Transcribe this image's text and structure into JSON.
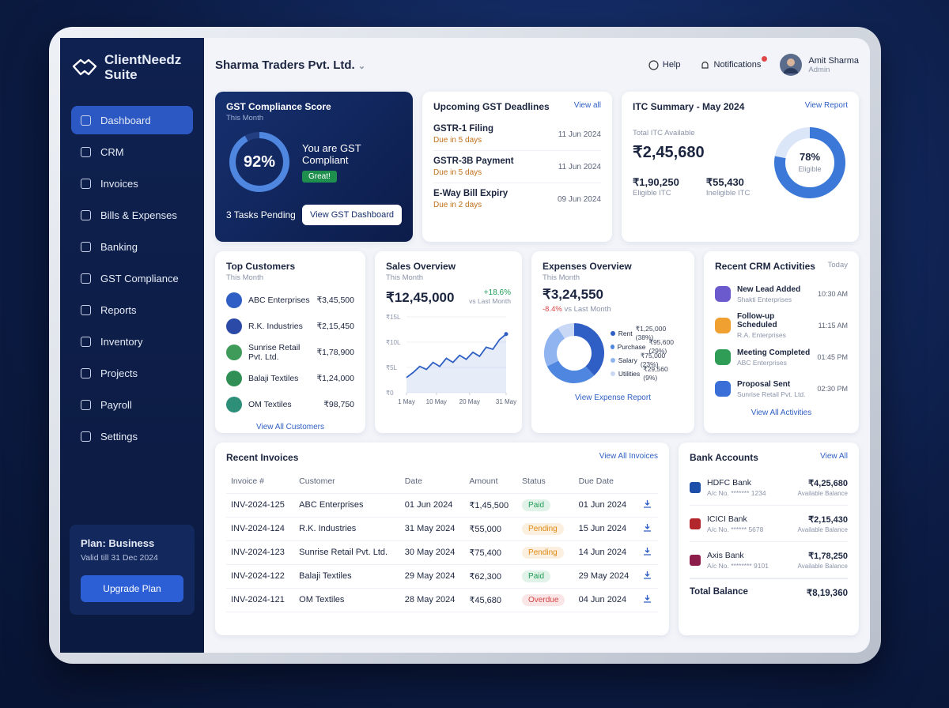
{
  "sidebar": {
    "brand": [
      "ClientNeedz",
      "Suite"
    ],
    "nav": [
      "Dashboard",
      "CRM",
      "Invoices",
      "Bills & Expenses",
      "Banking",
      "GST Compliance",
      "Reports",
      "Inventory",
      "Projects",
      "Payroll",
      "Settings"
    ],
    "plan": {
      "title": "Plan: Business",
      "valid": "Valid till 31 Dec 2024",
      "button": "Upgrade Plan"
    }
  },
  "topbar": {
    "company": "Sharma Traders Pvt. Ltd.",
    "help": "Help",
    "notifications": "Notifications",
    "user": "Amit Sharma",
    "role": "Admin"
  },
  "gst_score": {
    "title": "GST Compliance Score",
    "subtitle": "This Month",
    "value": 92,
    "value_label": "92%",
    "status": "You are GST Compliant",
    "badge": "Great!",
    "pending": "3 Tasks Pending",
    "button": "View GST Dashboard"
  },
  "deadlines": {
    "title": "Upcoming GST Deadlines",
    "link": "View all",
    "items": [
      {
        "name": "GSTR-1 Filing",
        "due": "Due in 5 days",
        "date": "11 Jun 2024"
      },
      {
        "name": "GSTR-3B Payment",
        "due": "Due in 5 days",
        "date": "11 Jun 2024"
      },
      {
        "name": "E-Way Bill Expiry",
        "due": "Due in 2 days",
        "date": "09 Jun 2024"
      }
    ]
  },
  "itc": {
    "title": "ITC Summary - May 2024",
    "link": "View Report",
    "total_label": "Total ITC Available",
    "total": "₹2,45,680",
    "eligible": "₹1,90,250",
    "eligible_label": "Eligible ITC",
    "ineligible": "₹55,430",
    "ineligible_label": "Ineligible ITC",
    "eligible_pct": 78,
    "eligible_pct_label": "78%",
    "donut_label": "Eligible",
    "color": "#3b78d8"
  },
  "customers": {
    "title": "Top Customers",
    "subtitle": "This Month",
    "link": "View All Customers",
    "items": [
      {
        "name": "ABC Enterprises",
        "amount": "₹3,45,500",
        "color": "#2f5fc4"
      },
      {
        "name": "R.K. Industries",
        "amount": "₹2,15,450",
        "color": "#2b4aa8"
      },
      {
        "name": "Sunrise Retail Pvt. Ltd.",
        "amount": "₹1,78,900",
        "color": "#3e9b5a"
      },
      {
        "name": "Balaji Textiles",
        "amount": "₹1,24,000",
        "color": "#2f8f55"
      },
      {
        "name": "OM Textiles",
        "amount": "₹98,750",
        "color": "#2e8f78"
      }
    ]
  },
  "sales": {
    "title": "Sales Overview",
    "subtitle": "This Month",
    "total": "₹12,45,000",
    "change": "+18.6%",
    "change_note": "vs Last Month",
    "chart_data": {
      "type": "line",
      "color": "#2f5fc4",
      "x": [
        1,
        3,
        5,
        7,
        9,
        11,
        13,
        15,
        17,
        19,
        21,
        23,
        25,
        27,
        29,
        31
      ],
      "values": [
        3,
        4,
        5.2,
        4.6,
        6,
        5.2,
        6.8,
        6,
        7.4,
        6.6,
        8,
        7.2,
        9,
        8.6,
        10.5,
        11.6
      ],
      "xlim": [
        1,
        31
      ],
      "xticks": [
        {
          "value": 1,
          "label": "1 May"
        },
        {
          "value": 10,
          "label": "10 May"
        },
        {
          "value": 20,
          "label": "20 May"
        },
        {
          "value": 31,
          "label": "31 May"
        }
      ],
      "ylim": [
        0,
        15
      ],
      "yticks": [
        {
          "value": 0,
          "label": "₹0"
        },
        {
          "value": 5,
          "label": "₹5L"
        },
        {
          "value": 10,
          "label": "₹10L"
        },
        {
          "value": 15,
          "label": "₹15L"
        }
      ],
      "grid": true
    }
  },
  "expenses": {
    "title": "Expenses Overview",
    "subtitle": "This Month",
    "total": "₹3,24,550",
    "change": "-8.4%",
    "change_note": "vs Last Month",
    "link": "View Expense Report",
    "chart_data": {
      "type": "donut",
      "series": [
        {
          "name": "Rent",
          "value": 125000,
          "value_label": "₹1,25,000 (38%)",
          "color": "#2f5fc4"
        },
        {
          "name": "Purchase",
          "value": 95600,
          "value_label": "₹95,600 (29%)",
          "color": "#4f86e0"
        },
        {
          "name": "Salary",
          "value": 75000,
          "value_label": "₹75,000 (23%)",
          "color": "#8fb4ef"
        },
        {
          "name": "Utilities",
          "value": 29560,
          "value_label": "₹29,560 (9%)",
          "color": "#c9d9f5"
        }
      ]
    }
  },
  "crm": {
    "title": "Recent CRM Activities",
    "subtitle": "Today",
    "link": "View All Activities",
    "items": [
      {
        "title": "New Lead Added",
        "sub": "Shakti Enterprises",
        "time": "10:30 AM",
        "color": "#6a5acd"
      },
      {
        "title": "Follow-up Scheduled",
        "sub": "R.A. Enterprises",
        "time": "11:15 AM",
        "color": "#f0a030"
      },
      {
        "title": "Meeting Completed",
        "sub": "ABC Enterprises",
        "time": "01:45 PM",
        "color": "#2f9d55"
      },
      {
        "title": "Proposal Sent",
        "sub": "Sunrise Retail Pvt. Ltd.",
        "time": "02:30 PM",
        "color": "#3b6fd8"
      }
    ]
  },
  "invoices": {
    "title": "Recent Invoices",
    "link": "View All Invoices",
    "columns": [
      "Invoice #",
      "Customer",
      "Date",
      "Amount",
      "Status",
      "Due Date"
    ],
    "rows": [
      {
        "number": "INV-2024-125",
        "customer": "ABC Enterprises",
        "date": "01 Jun 2024",
        "amount": "₹1,45,500",
        "status": "Paid",
        "status_color": "#1f9d55",
        "due": "01 Jun 2024"
      },
      {
        "number": "INV-2024-124",
        "customer": "R.K. Industries",
        "date": "31 May 2024",
        "amount": "₹55,000",
        "status": "Pending",
        "status_color": "#e08a12",
        "due": "15 Jun 2024"
      },
      {
        "number": "INV-2024-123",
        "customer": "Sunrise Retail Pvt. Ltd.",
        "date": "30 May 2024",
        "amount": "₹75,400",
        "status": "Pending",
        "status_color": "#e08a12",
        "due": "14 Jun 2024"
      },
      {
        "number": "INV-2024-122",
        "customer": "Balaji Textiles",
        "date": "29 May 2024",
        "amount": "₹62,300",
        "status": "Paid",
        "status_color": "#1f9d55",
        "due": "29 May 2024"
      },
      {
        "number": "INV-2024-121",
        "customer": "OM Textiles",
        "date": "28 May 2024",
        "amount": "₹45,680",
        "status": "Overdue",
        "status_color": "#d64545",
        "due": "04 Jun 2024"
      }
    ]
  },
  "banks": {
    "title": "Bank Accounts",
    "link": "View All",
    "items": [
      {
        "name": "HDFC Bank",
        "account": "A/c No. ******* 1234",
        "balance": "₹4,25,680",
        "balance_label": "Available Balance",
        "color": "#1d4fa8"
      },
      {
        "name": "ICICI Bank",
        "account": "A/c No. ****** 5678",
        "balance": "₹2,15,430",
        "balance_label": "Available Balance",
        "color": "#b3262b"
      },
      {
        "name": "Axis Bank",
        "account": "A/c No. ******** 9101",
        "balance": "₹1,78,250",
        "balance_label": "Available Balance",
        "color": "#8c1d4a"
      }
    ],
    "total_label": "Total Balance",
    "total": "₹8,19,360"
  }
}
